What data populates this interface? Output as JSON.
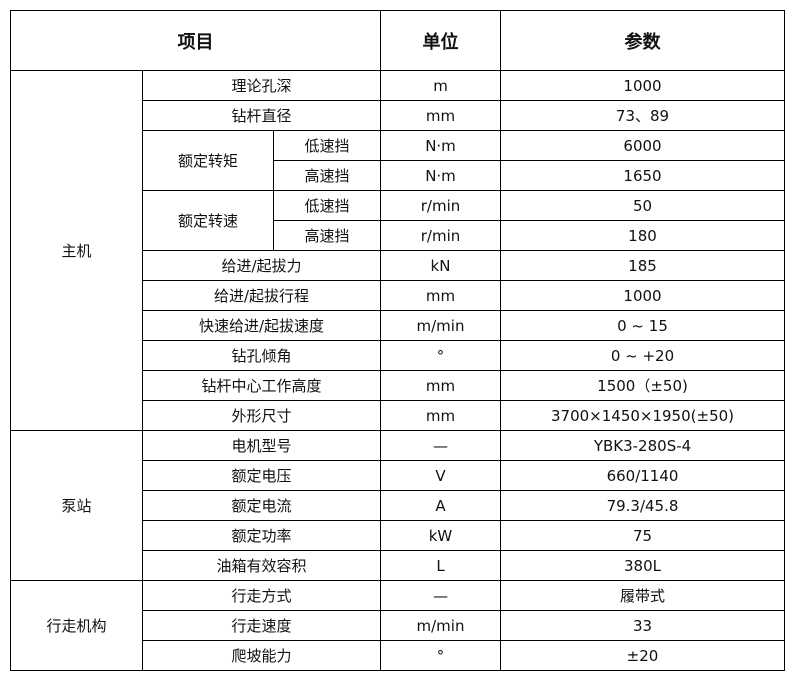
{
  "header": {
    "item": "项目",
    "unit": "单位",
    "param": "参数"
  },
  "groups": [
    {
      "name": "主机",
      "rows": [
        {
          "item": "理论孔深",
          "unit": "m",
          "value": "1000"
        },
        {
          "item": "钻杆直径",
          "unit": "mm",
          "value": "73、89"
        },
        {
          "item": "额定转矩",
          "sub": "低速挡",
          "unit": "N·m",
          "value": "6000"
        },
        {
          "item": "额定转矩",
          "sub": "高速挡",
          "unit": "N·m",
          "value": "1650"
        },
        {
          "item": "额定转速",
          "sub": "低速挡",
          "unit": "r/min",
          "value": "50"
        },
        {
          "item": "额定转速",
          "sub": "高速挡",
          "unit": "r/min",
          "value": "180"
        },
        {
          "item": "给进/起拔力",
          "unit": "kN",
          "value": "185"
        },
        {
          "item": "给进/起拔行程",
          "unit": "mm",
          "value": "1000"
        },
        {
          "item": "快速给进/起拔速度",
          "unit": "m/min",
          "value": "0 ~ 15"
        },
        {
          "item": "钻孔倾角",
          "unit": "°",
          "value": "0 ~ +20"
        },
        {
          "item": "钻杆中心工作高度",
          "unit": "mm",
          "value": "1500（±50)"
        },
        {
          "item": "外形尺寸",
          "unit": "mm",
          "value": "3700×1450×1950(±50)"
        }
      ]
    },
    {
      "name": "泵站",
      "rows": [
        {
          "item": "电机型号",
          "unit": "—",
          "value": "YBK3-280S-4"
        },
        {
          "item": "额定电压",
          "unit": "V",
          "value": "660/1140"
        },
        {
          "item": "额定电流",
          "unit": "A",
          "value": "79.3/45.8"
        },
        {
          "item": "额定功率",
          "unit": "kW",
          "value": "75"
        },
        {
          "item": "油箱有效容积",
          "unit": "L",
          "value": "380L"
        }
      ]
    },
    {
      "name": "行走机构",
      "rows": [
        {
          "item": "行走方式",
          "unit": "—",
          "value": "履带式"
        },
        {
          "item": "行走速度",
          "unit": "m/min",
          "value": "33"
        },
        {
          "item": "爬坡能力",
          "unit": "°",
          "value": "±20"
        }
      ]
    }
  ]
}
